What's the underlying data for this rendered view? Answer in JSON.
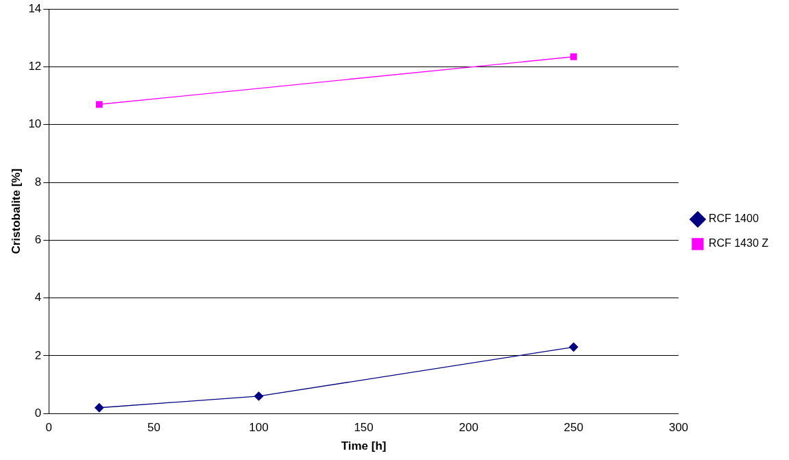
{
  "chart_data": {
    "type": "line",
    "xlabel": "Time [h]",
    "ylabel": "Cristobalite [%]",
    "xlim": [
      0,
      300
    ],
    "xticks": [
      0,
      50,
      100,
      150,
      200,
      250,
      300
    ],
    "ylim": [
      0,
      14
    ],
    "yticks": [
      0,
      2,
      4,
      6,
      8,
      10,
      12,
      14
    ],
    "grid": "y",
    "legend": "right",
    "series": [
      {
        "name": "RCF 1400",
        "color": "#000080",
        "marker": "diamond",
        "x": [
          24,
          100,
          250
        ],
        "values": [
          0.2,
          0.6,
          2.3
        ]
      },
      {
        "name": "RCF 1430 Z",
        "color": "#ff00ff",
        "marker": "square",
        "x": [
          24,
          250
        ],
        "values": [
          10.7,
          12.35
        ]
      }
    ]
  }
}
